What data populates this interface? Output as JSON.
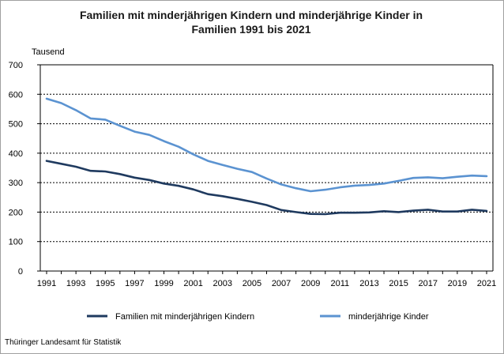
{
  "chart_data": {
    "type": "line",
    "title_line1": "Familien mit minderjährigen Kindern und minderjährige Kinder in",
    "title_line2": "Familien 1991 bis 2021",
    "unit_label": "Tausend",
    "ylim": [
      0,
      700
    ],
    "yticks": [
      "0",
      "100",
      "200",
      "300",
      "400",
      "500",
      "600",
      "700"
    ],
    "xlim": [
      1991,
      2021
    ],
    "xticks": [
      "1991",
      "1993",
      "1995",
      "1997",
      "1999",
      "2001",
      "2003",
      "2005",
      "2007",
      "2009",
      "2011",
      "2013",
      "2015",
      "2017",
      "2019",
      "2021"
    ],
    "grid": "horizontal dashed",
    "legend_position": "bottom",
    "x": [
      1991,
      1992,
      1993,
      1994,
      1995,
      1996,
      1997,
      1998,
      1999,
      2000,
      2001,
      2002,
      2003,
      2004,
      2005,
      2006,
      2007,
      2008,
      2009,
      2010,
      2011,
      2012,
      2013,
      2014,
      2015,
      2016,
      2017,
      2018,
      2019,
      2020,
      2021
    ],
    "series": [
      {
        "name": "Familien mit minderjährigen Kindern",
        "color": "#1f3a5f",
        "values": [
          374,
          364,
          354,
          340,
          338,
          329,
          317,
          309,
          297,
          289,
          277,
          261,
          254,
          245,
          235,
          224,
          207,
          200,
          194,
          193,
          198,
          198,
          199,
          203,
          200,
          205,
          208,
          202,
          202,
          208,
          204
        ]
      },
      {
        "name": "minderjährige Kinder",
        "color": "#5b93d1",
        "values": [
          585,
          570,
          546,
          518,
          514,
          493,
          473,
          462,
          441,
          422,
          396,
          374,
          360,
          347,
          336,
          314,
          294,
          281,
          271,
          276,
          284,
          290,
          292,
          297,
          306,
          316,
          318,
          315,
          320,
          324,
          322
        ]
      }
    ]
  },
  "source": "Thüringer Landesamt für Statistik"
}
